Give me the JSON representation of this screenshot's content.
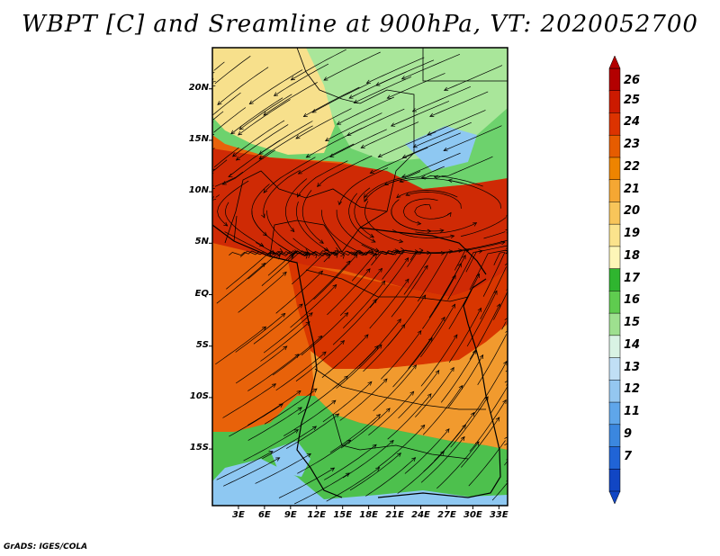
{
  "title": "WBPT [C] and Sreamline at 900hPa, VT: 2020052700",
  "footer": "GrADS: IGES/COLA",
  "lat_labels": [
    "20N",
    "15N",
    "10N",
    "5N",
    "EQ",
    "5S",
    "10S",
    "15S"
  ],
  "lon_labels": [
    "3E",
    "6E",
    "9E",
    "12E",
    "15E",
    "18E",
    "21E",
    "24E",
    "27E",
    "30E",
    "33E"
  ],
  "colorbar": {
    "levels": [
      "26",
      "25",
      "24",
      "23",
      "22",
      "21",
      "20",
      "19",
      "18",
      "17",
      "16",
      "15",
      "14",
      "13",
      "12",
      "11",
      "9",
      "7"
    ],
    "colors": [
      "#b30000",
      "#cc1a00",
      "#dc3300",
      "#e65c00",
      "#ee8400",
      "#f5a733",
      "#f8c55a",
      "#fbe38c",
      "#fdf6b8",
      "#2fb52f",
      "#5fcc4f",
      "#9ee08f",
      "#d9f3e4",
      "#c0dff5",
      "#94c7f0",
      "#5fa6ea",
      "#3b87df",
      "#2064d6",
      "#1146c4"
    ]
  },
  "map": {
    "lat_range": [
      -20.5,
      24
    ],
    "lon_range": [
      0,
      34
    ],
    "region_colors": {
      "sahara_green": "#6dd26d",
      "sahara_light": "#a9e69a",
      "sahara_yellow": "#f7e08c",
      "sahel_red": "#cf2a05",
      "congo_red": "#d83600",
      "ocean_orange": "#e8620a",
      "south_orange": "#f19a2e",
      "south_green": "#4dc04d",
      "south_blue": "#8ec8f2"
    }
  }
}
